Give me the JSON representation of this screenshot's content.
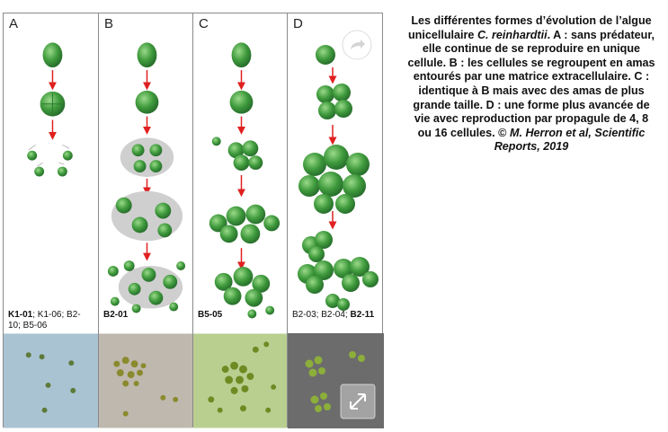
{
  "panels": [
    {
      "letter": "A",
      "strains": [
        {
          "text": "K1-01",
          "bold": true
        },
        {
          "text": "; K1-06; B2-10; B5-06",
          "bold": false
        }
      ]
    },
    {
      "letter": "B",
      "strains": [
        {
          "text": "B2-01",
          "bold": true
        }
      ]
    },
    {
      "letter": "C",
      "strains": [
        {
          "text": "B5-05",
          "bold": true
        }
      ]
    },
    {
      "letter": "D",
      "strains": [
        {
          "text": "B2-03; B2-04; ",
          "bold": false
        },
        {
          "text": "B2-11",
          "bold": true
        }
      ]
    }
  ],
  "caption": {
    "part1": "Les différentes formes d’évolution de l’algue unicellulaire ",
    "species": "C. reinhardtii",
    "part2": ". A : sans prédateur, elle continue de se reproduire en unique cellule. B : les cellules se regroupent en amas entourés par une matrice extracellulaire. C : identique à B mais avec des amas de plus grande taille. D : une forme plus avancée de vie avec reproduction par propagule de 4, 8 ou 16 cellules. © ",
    "credit": "M. Herron et al, Scientific Reports, 2019"
  },
  "icons": {
    "share": "share-arrow-icon",
    "expand": "expand-arrows-icon"
  },
  "colors": {
    "cell": "#3f9a3c",
    "cell_highlight": "#8fd07f",
    "arrow": "#e02020",
    "matrix": "#c9c9c9",
    "micro_a": "#a9c3d3",
    "micro_b": "#bfb8ae",
    "micro_c": "#b9cf90",
    "micro_d": "#6c6c6c"
  }
}
